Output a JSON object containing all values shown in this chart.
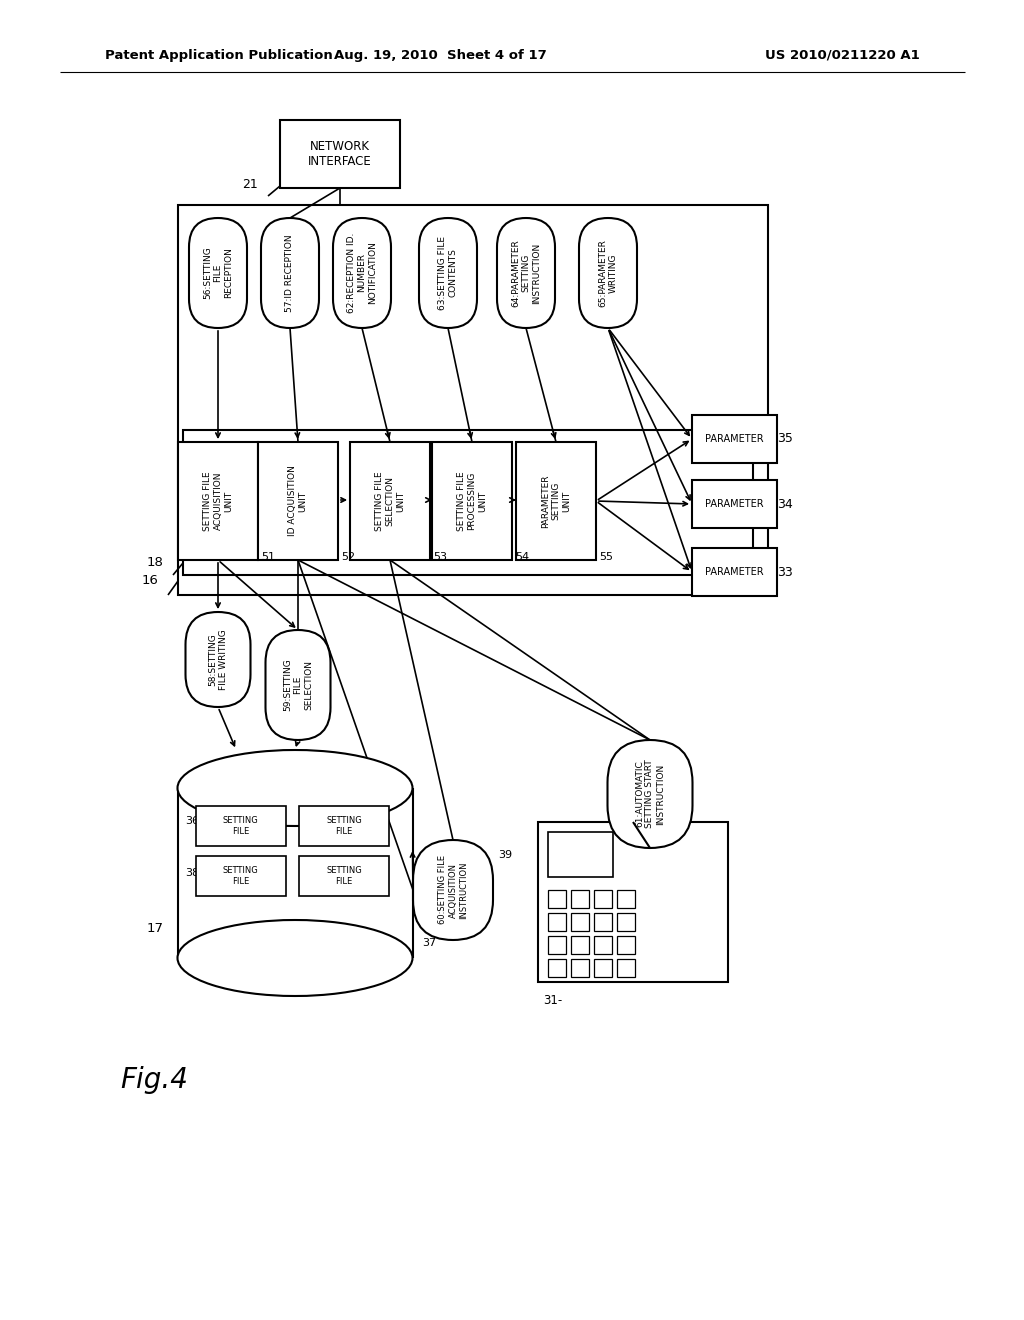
{
  "bg_color": "#ffffff",
  "header_left": "Patent Application Publication",
  "header_mid": "Aug. 19, 2010  Sheet 4 of 17",
  "header_right": "US 2010/0211220 A1",
  "fig_label": "Fig.4"
}
